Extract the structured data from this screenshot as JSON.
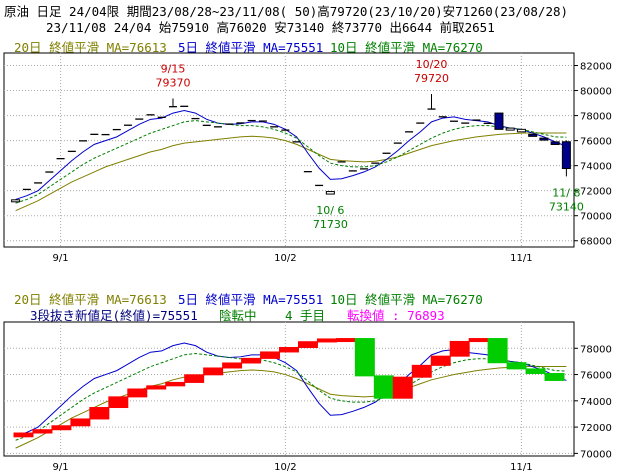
{
  "header": {
    "line1": "原油 日足 24/04限 期間23/08/28~23/11/08( 50)高79720(23/10/20)安71260(23/08/28)",
    "line2": "23/11/08 24/04 始75910 高76020 安73140 終73770 出6644 前取2651"
  },
  "legend_top": {
    "ma20": "20日 終値平滑 MA=76613",
    "ma5": "5日 終値平滑 MA=75551",
    "ma10": "10日 終値平滑 MA=76270"
  },
  "legend_bottom": {
    "ma20": "20日 終値平滑 MA=76613",
    "ma5": "5日 終値平滑 MA=75551",
    "ma10": "10日 終値平滑 MA=76270",
    "kagi_a": "3段抜き新値足(終値)=75551",
    "kagi_b": "陰転中",
    "kagi_c": "4 手目",
    "kagi_d": "転換値 : 76893"
  },
  "colors": {
    "ma20": "#808000",
    "ma5": "#0000cc",
    "ma10": "#008000",
    "up": "#ff0000",
    "down": "#00cc00",
    "candle_dn": "#00008b",
    "magenta": "#ff00ff",
    "anno_hi": "#cc0000",
    "anno_lo": "#008000"
  },
  "chart_data": [
    {
      "type": "candlestick",
      "x": [
        "8/28",
        "8/29",
        "8/30",
        "8/31",
        "9/1",
        "9/4",
        "9/5",
        "9/6",
        "9/7",
        "9/8",
        "9/11",
        "9/12",
        "9/13",
        "9/14",
        "9/15",
        "9/19",
        "9/20",
        "9/21",
        "9/22",
        "9/25",
        "9/26",
        "9/27",
        "9/28",
        "9/29",
        "10/2",
        "10/3",
        "10/4",
        "10/5",
        "10/6",
        "10/10",
        "10/11",
        "10/12",
        "10/13",
        "10/16",
        "10/17",
        "10/18",
        "10/19",
        "10/20",
        "10/23",
        "10/24",
        "10/25",
        "10/26",
        "10/27",
        "10/30",
        "10/31",
        "11/1",
        "11/2",
        "11/6",
        "11/7",
        "11/8"
      ],
      "close": [
        71270,
        72100,
        72620,
        73490,
        74560,
        75140,
        75980,
        76500,
        76480,
        76880,
        77230,
        77720,
        78060,
        77860,
        78710,
        78740,
        77760,
        77220,
        77100,
        77320,
        77410,
        77600,
        77560,
        77100,
        76840,
        75900,
        73520,
        72420,
        71930,
        74300,
        73580,
        73740,
        74200,
        74990,
        75800,
        76700,
        77400,
        78520,
        77900,
        77550,
        77400,
        77640,
        77380,
        76900,
        77000,
        76900,
        76430,
        76080,
        75690,
        73770
      ],
      "open": [
        71260,
        null,
        null,
        null,
        null,
        null,
        null,
        null,
        null,
        null,
        null,
        null,
        null,
        null,
        null,
        null,
        null,
        null,
        null,
        null,
        null,
        null,
        null,
        null,
        null,
        null,
        null,
        null,
        71730,
        null,
        null,
        null,
        null,
        null,
        null,
        null,
        null,
        null,
        null,
        null,
        null,
        null,
        null,
        78200,
        76900,
        76700,
        76500,
        76200,
        75900,
        75910
      ],
      "high": [
        null,
        null,
        null,
        null,
        null,
        null,
        null,
        null,
        null,
        null,
        null,
        null,
        null,
        null,
        79370,
        null,
        null,
        null,
        null,
        null,
        null,
        null,
        null,
        null,
        null,
        null,
        null,
        null,
        null,
        null,
        null,
        null,
        null,
        null,
        null,
        null,
        null,
        79720,
        null,
        null,
        null,
        null,
        null,
        null,
        null,
        null,
        null,
        null,
        null,
        76020
      ],
      "low": [
        71260,
        null,
        null,
        null,
        null,
        null,
        null,
        null,
        null,
        null,
        null,
        null,
        null,
        null,
        null,
        null,
        null,
        null,
        null,
        null,
        null,
        null,
        null,
        null,
        null,
        null,
        null,
        null,
        71730,
        null,
        null,
        null,
        null,
        null,
        null,
        null,
        null,
        null,
        null,
        null,
        null,
        null,
        null,
        null,
        null,
        null,
        null,
        null,
        null,
        73140
      ],
      "series": [
        {
          "name": "20日 終値平滑",
          "values": [
            70400,
            70800,
            71200,
            71700,
            72200,
            72700,
            73100,
            73500,
            73900,
            74200,
            74500,
            74800,
            75100,
            75300,
            75600,
            75800,
            75900,
            76000,
            76100,
            76200,
            76300,
            76350,
            76300,
            76200,
            76000,
            75700,
            75300,
            74900,
            74500,
            74400,
            74350,
            74300,
            74350,
            74500,
            74700,
            75000,
            75300,
            75600,
            75800,
            76000,
            76150,
            76300,
            76400,
            76500,
            76550,
            76600,
            76620,
            76610,
            76613,
            76613
          ]
        },
        {
          "name": "5日 終値平滑",
          "values": [
            71300,
            71600,
            72000,
            72800,
            73600,
            74400,
            75100,
            75700,
            76000,
            76300,
            76800,
            77300,
            77700,
            77800,
            78200,
            78400,
            78200,
            77700,
            77400,
            77300,
            77350,
            77500,
            77500,
            77300,
            76900,
            76300,
            75000,
            73800,
            72900,
            72950,
            73200,
            73500,
            73900,
            74500,
            75200,
            76000,
            76700,
            77500,
            77800,
            77900,
            77700,
            77600,
            77500,
            77200,
            77000,
            76900,
            76600,
            76300,
            75900,
            75551
          ]
        },
        {
          "name": "10日 終値平滑",
          "values": [
            71000,
            71300,
            71700,
            72300,
            72900,
            73500,
            74100,
            74600,
            75000,
            75400,
            75800,
            76200,
            76600,
            76900,
            77200,
            77500,
            77600,
            77500,
            77400,
            77300,
            77200,
            77200,
            77100,
            76900,
            76600,
            76200,
            75500,
            74800,
            74200,
            74000,
            73900,
            73900,
            74000,
            74300,
            74700,
            75200,
            75700,
            76200,
            76600,
            76900,
            77100,
            77200,
            77200,
            77100,
            77000,
            76900,
            76700,
            76500,
            76300,
            76270
          ]
        }
      ],
      "annotations": [
        {
          "text": "9/15",
          "sub": "79370"
        },
        {
          "text": "10/20",
          "sub": "79720"
        },
        {
          "text": "10/ 6",
          "sub": "71730"
        },
        {
          "text": "11/ 8",
          "sub": "73140"
        }
      ],
      "xticks": [
        "9/1",
        "10/2",
        "11/1"
      ],
      "yticks": [
        "68000",
        "70000",
        "72000",
        "74000",
        "76000",
        "78000",
        "80000",
        "82000"
      ],
      "ylim": [
        67500,
        83000
      ]
    },
    {
      "type": "kagi",
      "x": [
        "8/28",
        "8/29",
        "8/30",
        "8/31",
        "9/1",
        "9/4",
        "9/5",
        "9/6",
        "9/7",
        "9/8",
        "9/11",
        "9/12",
        "9/13",
        "9/14",
        "9/15",
        "9/19",
        "9/20",
        "9/21",
        "9/22",
        "9/25",
        "9/26",
        "9/27",
        "9/28",
        "9/29",
        "10/2",
        "10/3",
        "10/4",
        "10/5",
        "10/6",
        "10/10",
        "10/11",
        "10/12",
        "10/13",
        "10/16",
        "10/17",
        "10/18",
        "10/19",
        "10/20",
        "10/23",
        "10/24",
        "10/25",
        "10/26",
        "10/27",
        "10/30",
        "10/31",
        "11/1",
        "11/2",
        "11/6",
        "11/7",
        "11/8"
      ],
      "bricks": [
        {
          "dir": "up",
          "from": 71260,
          "to": 71550
        },
        {
          "dir": "up",
          "from": 71550,
          "to": 71800
        },
        {
          "dir": "up",
          "from": 71800,
          "to": 72100
        },
        {
          "dir": "up",
          "from": 72100,
          "to": 72620
        },
        {
          "dir": "up",
          "from": 72620,
          "to": 73490
        },
        {
          "dir": "up",
          "from": 73490,
          "to": 74300
        },
        {
          "dir": "up",
          "from": 74300,
          "to": 74900
        },
        {
          "dir": "up",
          "from": 74900,
          "to": 75140
        },
        {
          "dir": "up",
          "from": 75140,
          "to": 75400
        },
        {
          "dir": "up",
          "from": 75400,
          "to": 75980
        },
        {
          "dir": "up",
          "from": 75980,
          "to": 76500
        },
        {
          "dir": "up",
          "from": 76500,
          "to": 76880
        },
        {
          "dir": "up",
          "from": 76880,
          "to": 77230
        },
        {
          "dir": "up",
          "from": 77230,
          "to": 77720
        },
        {
          "dir": "up",
          "from": 77720,
          "to": 78060
        },
        {
          "dir": "up",
          "from": 78060,
          "to": 78500
        },
        {
          "dir": "up",
          "from": 78500,
          "to": 78710
        },
        {
          "dir": "up",
          "from": 78710,
          "to": 78740
        },
        {
          "dir": "down",
          "from": 78740,
          "to": 75900
        },
        {
          "dir": "down",
          "from": 75900,
          "to": 74200
        },
        {
          "dir": "up",
          "from": 74200,
          "to": 75800
        },
        {
          "dir": "up",
          "from": 75800,
          "to": 76700
        },
        {
          "dir": "up",
          "from": 76700,
          "to": 77400
        },
        {
          "dir": "up",
          "from": 77400,
          "to": 78520
        },
        {
          "dir": "up",
          "from": 78520,
          "to": 78740
        },
        {
          "dir": "down",
          "from": 78740,
          "to": 76900
        },
        {
          "dir": "down",
          "from": 76900,
          "to": 76430
        },
        {
          "dir": "down",
          "from": 76430,
          "to": 76080
        },
        {
          "dir": "down",
          "from": 76080,
          "to": 75551
        }
      ],
      "xticks": [
        "9/1",
        "10/2",
        "11/1"
      ],
      "yticks": [
        "70000",
        "72000",
        "74000",
        "76000",
        "78000"
      ],
      "ylim": [
        69800,
        80000
      ]
    }
  ]
}
